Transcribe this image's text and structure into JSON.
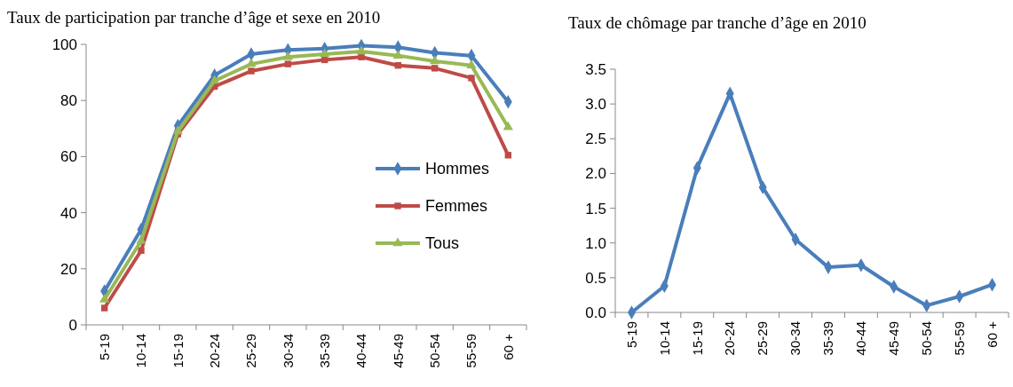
{
  "chart_data": [
    {
      "type": "line",
      "title": "Taux de participation par tranche d’âge et sexe en 2010",
      "categories": [
        "5-19",
        "10-14",
        "15-19",
        "20-24",
        "25-29",
        "30-34",
        "35-39",
        "40-44",
        "45-49",
        "50-54",
        "55-59",
        "60 +"
      ],
      "ylim": [
        0,
        100
      ],
      "yticks": [
        0,
        20,
        40,
        60,
        80,
        100
      ],
      "legend": "bottom right",
      "series": [
        {
          "name": "Hommes",
          "color": "#4a7ebb",
          "marker": "diamond",
          "values": [
            12,
            34,
            71,
            89,
            96.5,
            98,
            98.5,
            99.5,
            99,
            97,
            96,
            79.5
          ]
        },
        {
          "name": "Femmes",
          "color": "#be4b48",
          "marker": "square",
          "values": [
            6,
            26.5,
            68,
            85,
            90.5,
            93,
            94.5,
            95.5,
            92.5,
            91.5,
            88,
            60.5
          ]
        },
        {
          "name": "Tous",
          "color": "#98b954",
          "marker": "triangle",
          "values": [
            9,
            30,
            69,
            87,
            93,
            95.5,
            96.5,
            97.5,
            96,
            94,
            92.5,
            70.5
          ]
        }
      ]
    },
    {
      "type": "line",
      "title": "Taux de chômage par tranche d’âge en 2010",
      "categories": [
        "5-19",
        "10-14",
        "15-19",
        "20-24",
        "25-29",
        "30-34",
        "35-39",
        "40-44",
        "45-49",
        "50-54",
        "55-59",
        "60 +"
      ],
      "ylim": [
        0,
        3.5
      ],
      "yticks": [
        {
          "value": 0,
          "label": "0.0"
        },
        {
          "value": 0.5,
          "label": "0.5"
        },
        {
          "value": 1,
          "label": "1.0"
        },
        {
          "value": 1.5,
          "label": "1.5"
        },
        {
          "value": 2,
          "label": "2.0"
        },
        {
          "value": 2.5,
          "label": "2.5"
        },
        {
          "value": 3,
          "label": "3.0"
        },
        {
          "value": 3.5,
          "label": "3.5"
        }
      ],
      "legend": false,
      "series": [
        {
          "color": "#4a7ebb",
          "marker": "diamond",
          "values": [
            0,
            0.38,
            2.08,
            3.15,
            1.8,
            1.05,
            0.65,
            0.68,
            0.37,
            0.1,
            0.23,
            0.4
          ]
        }
      ]
    }
  ]
}
